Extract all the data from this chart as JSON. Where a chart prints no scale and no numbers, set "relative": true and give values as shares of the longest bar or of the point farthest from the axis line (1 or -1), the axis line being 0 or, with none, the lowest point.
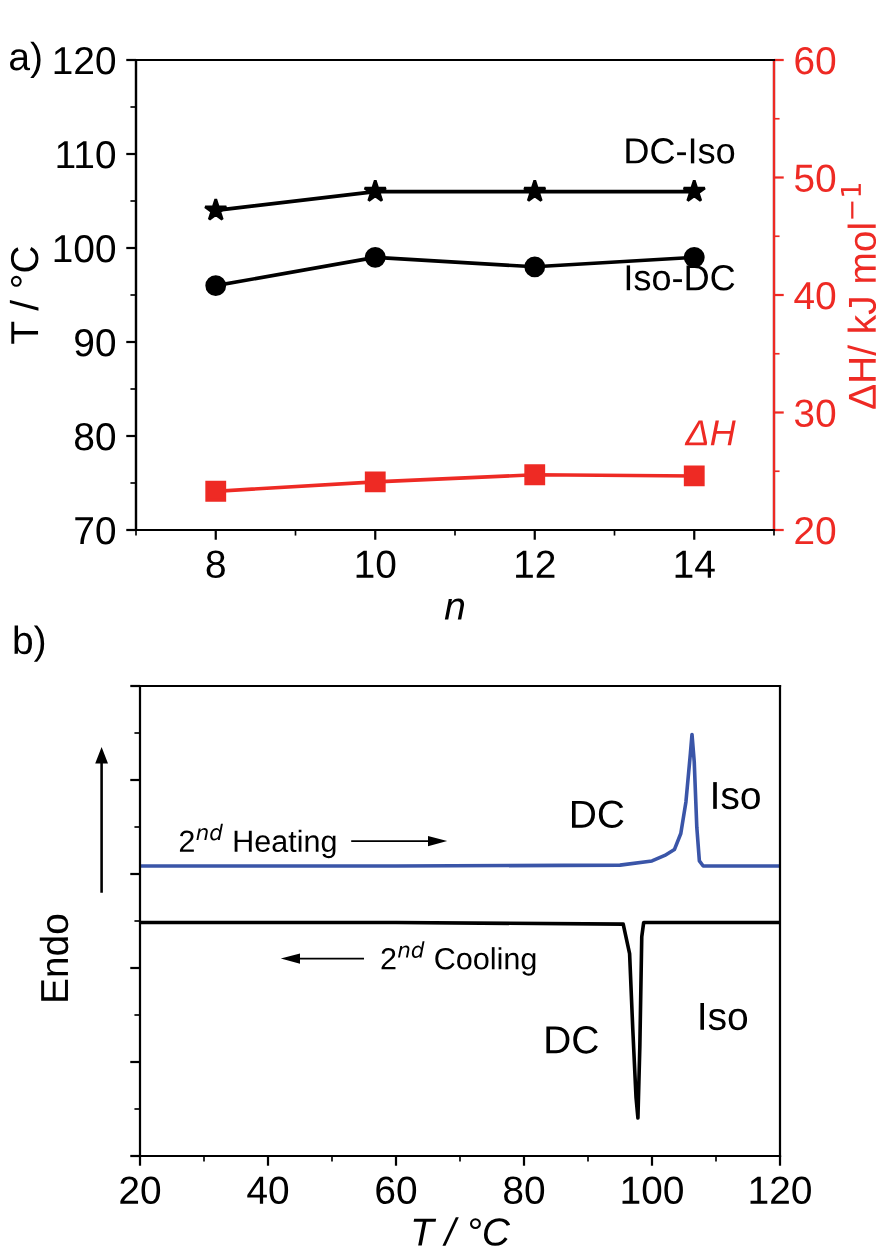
{
  "chart_data": [
    {
      "type": "line",
      "xlabel": "n",
      "ylabel": "T / °C",
      "y2label": "ΔH/ kJ mol$^{−1}$",
      "annotations": [
        "a)"
      ],
      "x": [
        8,
        10,
        12,
        14
      ],
      "xlim": [
        7,
        15
      ],
      "xticks": [
        8,
        10,
        12,
        14
      ],
      "ylim": [
        70,
        120
      ],
      "yticks": [
        70,
        80,
        90,
        100,
        110,
        120
      ],
      "y2lim": [
        20,
        60
      ],
      "y2ticks": [
        20,
        30,
        40,
        50,
        60
      ],
      "grid": false,
      "legend": false,
      "line_style": "solid",
      "series": [
        {
          "name": "DC-Iso",
          "color": "#000000",
          "marker": "star",
          "values": [
            104,
            106,
            106,
            106
          ]
        },
        {
          "name": "Iso-DC",
          "color": "#000000",
          "marker": "circle",
          "values": [
            96,
            99,
            98,
            99
          ]
        },
        {
          "name": "ΔH",
          "color": "#ee2a24",
          "marker": "square",
          "axis": "y2",
          "values": [
            23.3,
            24.1,
            24.7,
            24.6
          ]
        }
      ]
    },
    {
      "type": "line",
      "relative": true,
      "xlabel": "T / °C",
      "ylabel": "Endo",
      "tick_labels": "x",
      "grid": false,
      "legend": false,
      "marker": "none",
      "line_style": "solid",
      "annotations": [
        "b)",
        "2$^{nd}$ Heating",
        "2$^{nd}$ Cooling",
        "DC",
        "Iso",
        "DC",
        "Iso"
      ],
      "xlim": [
        20,
        120
      ],
      "xticks": [
        20,
        40,
        60,
        80,
        100,
        120
      ],
      "series": [
        {
          "color": "#3a55a8",
          "x": [
            20,
            60,
            95,
            100,
            102,
            103.5,
            104.5,
            105.3,
            106,
            106.25,
            106.6,
            107,
            107.4,
            108,
            120
          ],
          "values": [
            0.688,
            0.688,
            0.69,
            0.7,
            0.713,
            0.727,
            0.765,
            0.84,
            0.955,
            1,
            0.935,
            0.78,
            0.7,
            0.688,
            0.688
          ]
        },
        {
          "color": "#000000",
          "x": [
            20,
            60,
            95.5,
            96.5,
            97.0,
            97.5,
            97.8,
            98.1,
            98.4,
            98.7,
            120
          ],
          "values": [
            0.554,
            0.554,
            0.55,
            0.48,
            0.3,
            0.14,
            0.09,
            0.26,
            0.52,
            0.554,
            0.554
          ]
        }
      ]
    }
  ]
}
